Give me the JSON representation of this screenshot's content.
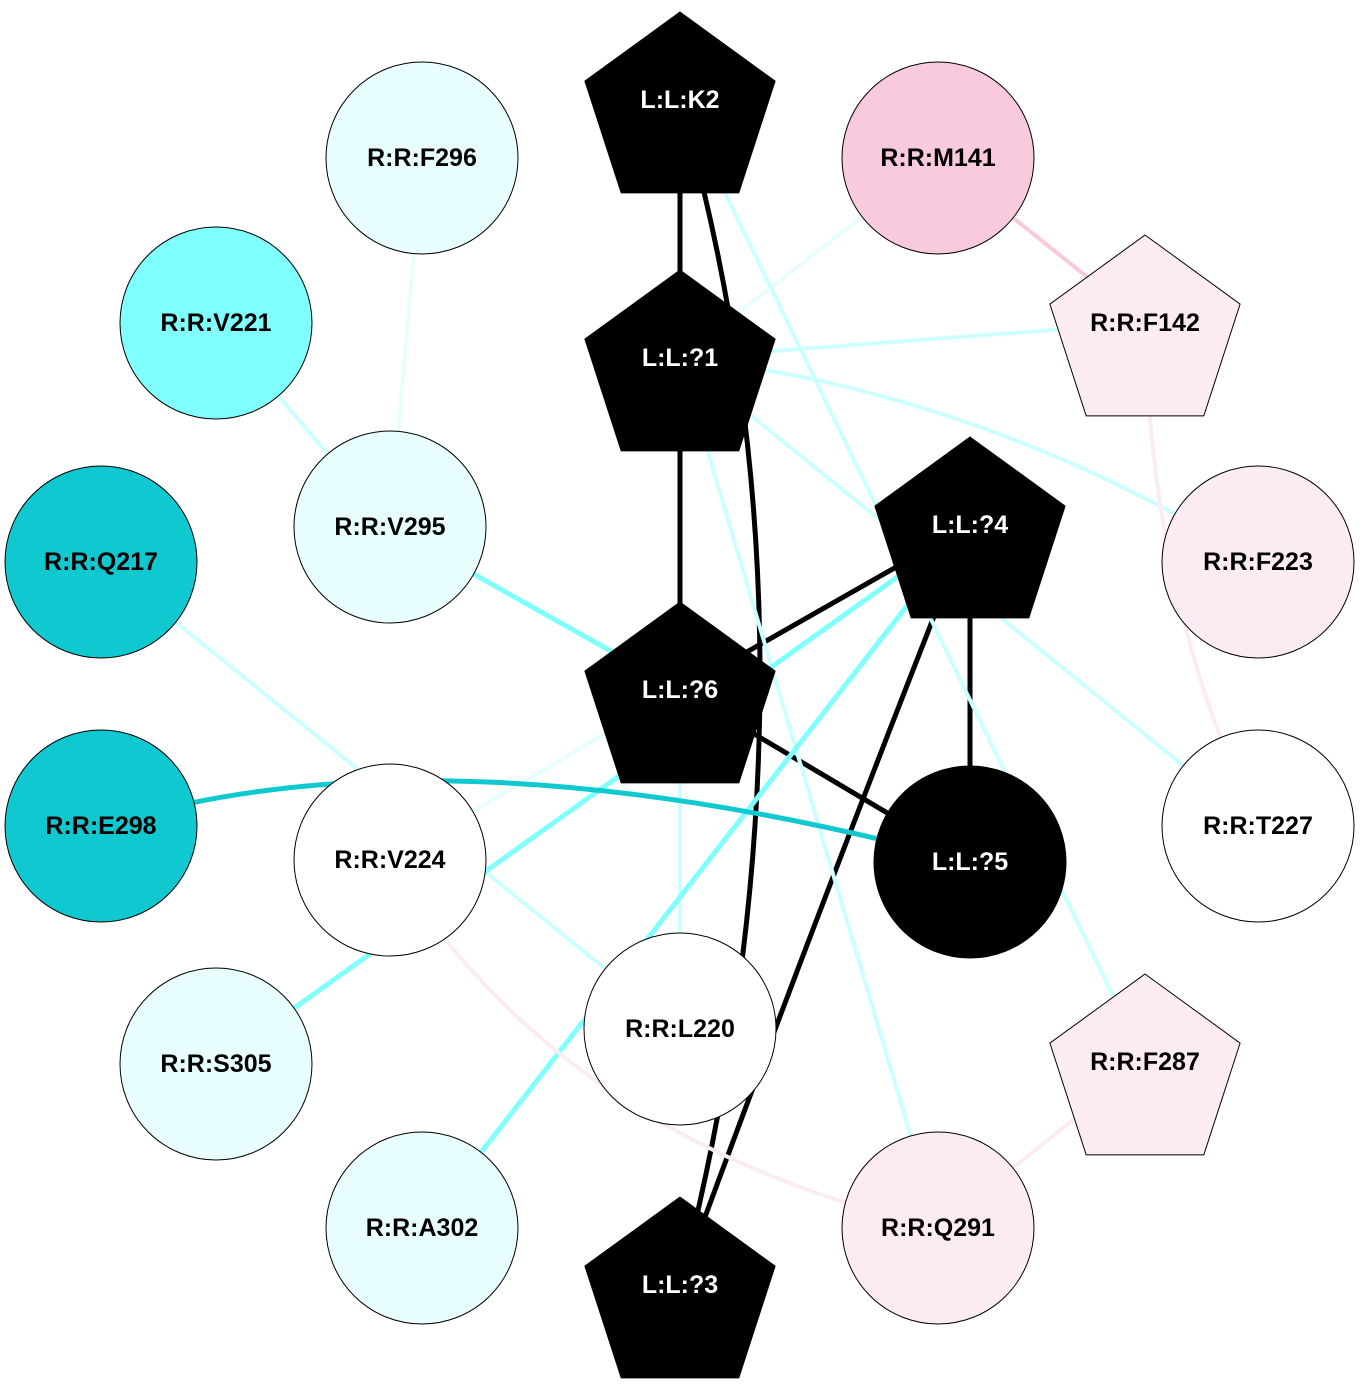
{
  "nodes": [
    {
      "id": "K2",
      "label": "L:L:K2",
      "shape": "pentagon",
      "fill": "#000000",
      "text": "#ffffff"
    },
    {
      "id": "L1",
      "label": "L:L:?1",
      "shape": "pentagon",
      "fill": "#000000",
      "text": "#ffffff"
    },
    {
      "id": "L6",
      "label": "L:L:?6",
      "shape": "pentagon",
      "fill": "#000000",
      "text": "#ffffff"
    },
    {
      "id": "L4",
      "label": "L:L:?4",
      "shape": "pentagon",
      "fill": "#000000",
      "text": "#ffffff"
    },
    {
      "id": "L5",
      "label": "L:L:?5",
      "shape": "circle",
      "fill": "#000000",
      "text": "#ffffff"
    },
    {
      "id": "L3",
      "label": "L:L:?3",
      "shape": "pentagon",
      "fill": "#000000",
      "text": "#ffffff"
    },
    {
      "id": "F296",
      "label": "R:R:F296",
      "shape": "circle",
      "fill": "#e8fefe",
      "text": "#000000"
    },
    {
      "id": "M141",
      "label": "R:R:M141",
      "shape": "circle",
      "fill": "#f9c9dd",
      "text": "#000000"
    },
    {
      "id": "V221",
      "label": "R:R:V221",
      "shape": "circle",
      "fill": "#80ffff",
      "text": "#000000"
    },
    {
      "id": "F142",
      "label": "R:R:F142",
      "shape": "pentagon",
      "fill": "#fcebf3",
      "text": "#000000"
    },
    {
      "id": "V295",
      "label": "R:R:V295",
      "shape": "circle",
      "fill": "#e8fefe",
      "text": "#000000"
    },
    {
      "id": "Q217",
      "label": "R:R:Q217",
      "shape": "circle",
      "fill": "#10c8d0",
      "text": "#000000"
    },
    {
      "id": "F223",
      "label": "R:R:F223",
      "shape": "circle",
      "fill": "#fcebf3",
      "text": "#000000"
    },
    {
      "id": "E298",
      "label": "R:R:E298",
      "shape": "circle",
      "fill": "#10c8d0",
      "text": "#000000"
    },
    {
      "id": "V224",
      "label": "R:R:V224",
      "shape": "circle",
      "fill": "#ffffff",
      "text": "#000000"
    },
    {
      "id": "T227",
      "label": "R:R:T227",
      "shape": "circle",
      "fill": "#ffffff",
      "text": "#000000"
    },
    {
      "id": "L220",
      "label": "R:R:L220",
      "shape": "circle",
      "fill": "#ffffff",
      "text": "#000000"
    },
    {
      "id": "S305",
      "label": "R:R:S305",
      "shape": "circle",
      "fill": "#e8fefe",
      "text": "#000000"
    },
    {
      "id": "F287",
      "label": "R:R:F287",
      "shape": "pentagon",
      "fill": "#fcebf3",
      "text": "#000000"
    },
    {
      "id": "A302",
      "label": "R:R:A302",
      "shape": "circle",
      "fill": "#e8fefe",
      "text": "#000000"
    },
    {
      "id": "Q291",
      "label": "R:R:Q291",
      "shape": "circle",
      "fill": "#fcebf3",
      "text": "#000000"
    }
  ],
  "edges": [
    {
      "from": "K2",
      "to": "L1",
      "color": "#000000"
    },
    {
      "from": "L1",
      "to": "L6",
      "color": "#000000"
    },
    {
      "from": "L6",
      "to": "L4",
      "color": "#000000"
    },
    {
      "from": "L6",
      "to": "L5",
      "color": "#000000"
    },
    {
      "from": "L4",
      "to": "L5",
      "color": "#000000"
    },
    {
      "from": "L4",
      "to": "L3",
      "color": "#000000"
    },
    {
      "from": "K2",
      "to": "L3",
      "color": "#000000"
    },
    {
      "from": "M141",
      "to": "L1",
      "color": "#e8fefe"
    },
    {
      "from": "F142",
      "to": "L1",
      "color": "#ccffff"
    },
    {
      "from": "L1",
      "to": "F223",
      "color": "#ccffff"
    },
    {
      "from": "L1",
      "to": "T227",
      "color": "#ccffff"
    },
    {
      "from": "L1",
      "to": "Q291",
      "color": "#ccffff"
    },
    {
      "from": "K2",
      "to": "F287",
      "color": "#ccffff"
    },
    {
      "from": "F296",
      "to": "V295",
      "color": "#e8fefe"
    },
    {
      "from": "V221",
      "to": "V295",
      "color": "#ccffff"
    },
    {
      "from": "V295",
      "to": "L6",
      "color": "#80ffff"
    },
    {
      "from": "Q217",
      "to": "L220",
      "color": "#ccffff"
    },
    {
      "from": "V224",
      "to": "L6",
      "color": "#e8fefe"
    },
    {
      "from": "L6",
      "to": "L220",
      "color": "#ccffff"
    },
    {
      "from": "L4",
      "to": "S305",
      "color": "#80ffff"
    },
    {
      "from": "L4",
      "to": "A302",
      "color": "#80ffff"
    },
    {
      "from": "E298",
      "to": "L5",
      "color": "#10c8d0"
    },
    {
      "from": "M141",
      "to": "F142",
      "color": "#f9c9dd"
    },
    {
      "from": "F142",
      "to": "T227",
      "color": "#fcebf3"
    },
    {
      "from": "V224",
      "to": "Q291",
      "color": "#fcebf3"
    },
    {
      "from": "Q291",
      "to": "F287",
      "color": "#fcebf3"
    }
  ]
}
